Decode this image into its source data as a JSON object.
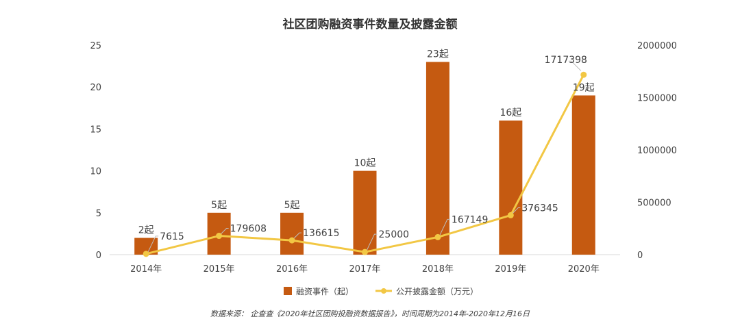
{
  "chart_data": {
    "type": "bar",
    "title": "社区团购融资事件数量及披露金额",
    "categories": [
      "2014年",
      "2015年",
      "2016年",
      "2017年",
      "2018年",
      "2019年",
      "2020年"
    ],
    "series": [
      {
        "name": "融资事件（起）",
        "type": "bar",
        "axis": "left",
        "color": "#C55A11",
        "values": [
          2,
          5,
          5,
          10,
          23,
          16,
          19
        ],
        "labels": [
          "2起",
          "5起",
          "5起",
          "10起",
          "23起",
          "16起",
          "19起"
        ]
      },
      {
        "name": "公开披露金额（万元）",
        "type": "line",
        "axis": "right",
        "color": "#F2C744",
        "values": [
          7615,
          179608,
          136615,
          25000,
          167149,
          376345,
          1717398
        ],
        "labels": [
          "7615",
          "179608",
          "136615",
          "25000",
          "167149",
          "376345",
          "1717398"
        ]
      }
    ],
    "y_left": {
      "min": 0,
      "max": 25,
      "ticks": [
        "0",
        "5",
        "10",
        "15",
        "20",
        "25"
      ]
    },
    "y_right": {
      "min": 0,
      "max": 2000000,
      "ticks": [
        "0",
        "500000",
        "1000000",
        "1500000",
        "2000000"
      ]
    },
    "grid": false,
    "legend_position": "bottom"
  },
  "source_note": "数据来源：  企查查《2020年社区团购投融资数据报告》，时间周期为2014年-2020年12月16日"
}
